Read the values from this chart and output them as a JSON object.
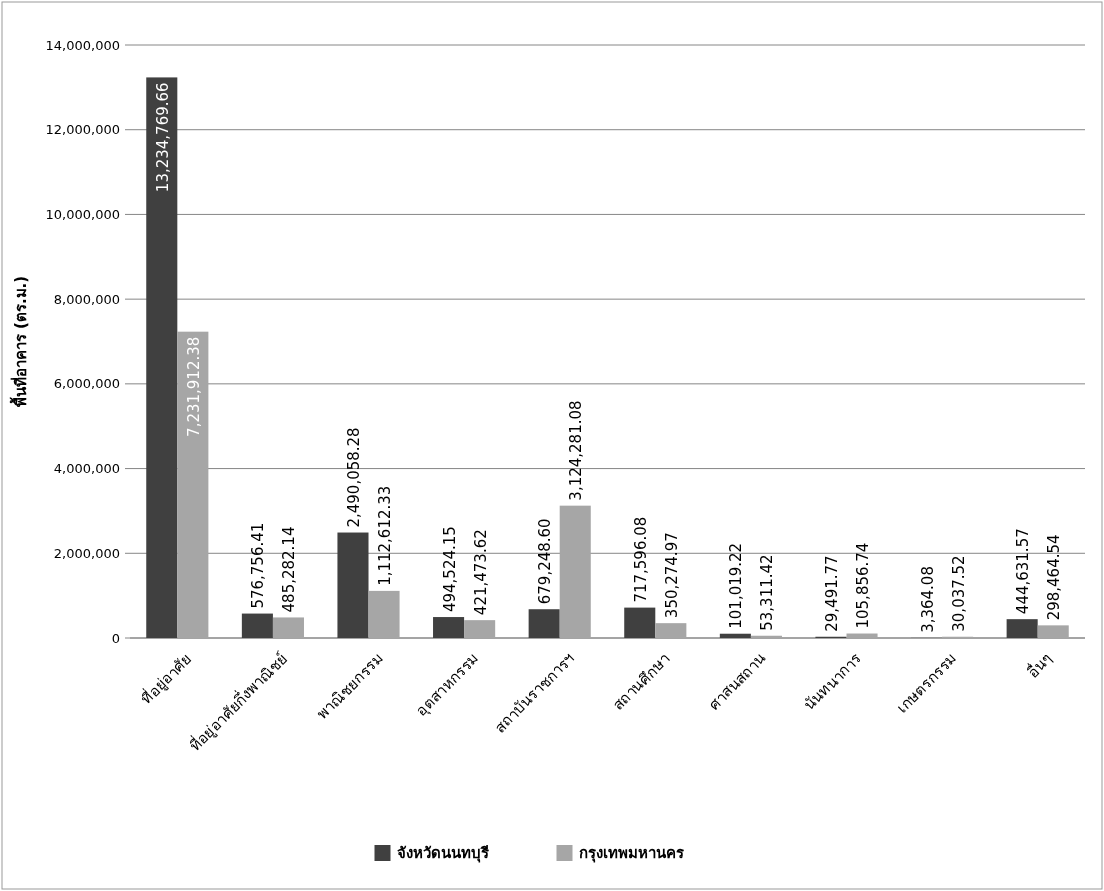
{
  "chart_data": {
    "type": "bar",
    "ylabel": "พื้นที่อาคาร (ตร.ม.)",
    "categories": [
      "ที่อยู่อาศัย",
      "ที่อยู่อาศัยกึ่งพาณิชย์",
      "พาณิชยกรรม",
      "อุตสาหกรรม",
      "สถาบันราชการฯ",
      "สถานศึกษา",
      "ศาสนสถาน",
      "นันทนาการ",
      "เกษตรกรรม",
      "อื่นๆ"
    ],
    "series": [
      {
        "name": "จังหวัดนนทบุรี",
        "color": "#404040",
        "values": [
          13234769.66,
          576756.41,
          2490058.28,
          494524.15,
          679248.6,
          717596.08,
          101019.22,
          29491.77,
          3364.08,
          444631.57
        ],
        "value_labels": [
          "13,234,769.66",
          "576,756.41",
          "2,490,058.28",
          "494,524.15",
          "679,248.60",
          "717,596.08",
          "101,019.22",
          "29,491.77",
          "3,364.08",
          "444,631.57"
        ]
      },
      {
        "name": "กรุงเทพมหานคร",
        "color": "#a6a6a6",
        "values": [
          7231912.38,
          485282.14,
          1112612.33,
          421473.62,
          3124281.08,
          350274.97,
          53311.42,
          105856.74,
          30037.52,
          298464.54
        ],
        "value_labels": [
          "7,231,912.38",
          "485,282.14",
          "1,112,612.33",
          "421,473.62",
          "3,124,281.08",
          "350,274.97",
          "53,311.42",
          "105,856.74",
          "30,037.52",
          "298,464.54"
        ]
      }
    ],
    "ylim": [
      0,
      14000000
    ],
    "yticks": [
      {
        "value": 0,
        "label": "0"
      },
      {
        "value": 2000000,
        "label": "2,000,000"
      },
      {
        "value": 4000000,
        "label": "4,000,000"
      },
      {
        "value": 6000000,
        "label": "6,000,000"
      },
      {
        "value": 8000000,
        "label": "8,000,000"
      },
      {
        "value": 10000000,
        "label": "10,000,000"
      },
      {
        "value": 12000000,
        "label": "12,000,000"
      },
      {
        "value": 14000000,
        "label": "14,000,000"
      }
    ],
    "grid": "y",
    "legend": "bottom"
  }
}
